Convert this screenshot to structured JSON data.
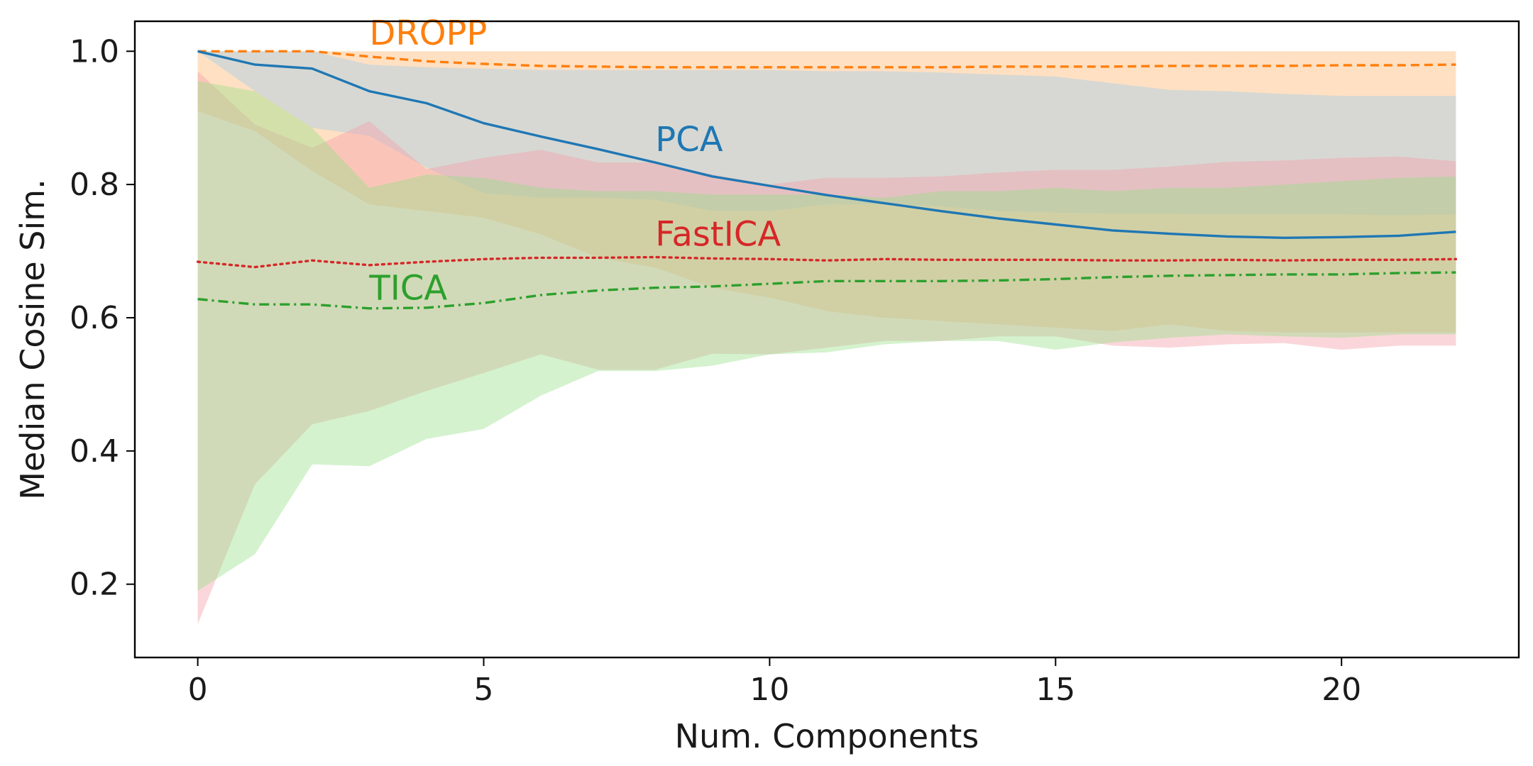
{
  "chart_data": {
    "type": "line",
    "title": "",
    "xlabel": "Num. Components",
    "ylabel": "Median Cosine Sim.",
    "xlim": [
      -1.1,
      23.1
    ],
    "ylim": [
      0.09,
      1.045
    ],
    "xticks": [
      0,
      5,
      10,
      15,
      20
    ],
    "yticks": [
      0.2,
      0.4,
      0.6,
      0.8,
      1.0
    ],
    "ytick_labels": [
      "0.2",
      "0.4",
      "0.6",
      "0.8",
      "1.0"
    ],
    "grid": false,
    "legend": "none (inline labels)",
    "x": [
      0,
      1,
      2,
      3,
      4,
      5,
      6,
      7,
      8,
      9,
      10,
      11,
      12,
      13,
      14,
      15,
      16,
      17,
      18,
      19,
      20,
      21,
      22
    ],
    "series": [
      {
        "name": "DROPP",
        "color": "#ff7f0e",
        "line_style": "dashed",
        "label_at": [
          3,
          1.01
        ],
        "values": [
          1.0,
          1.0,
          1.0,
          0.992,
          0.985,
          0.981,
          0.978,
          0.977,
          0.976,
          0.976,
          0.976,
          0.976,
          0.976,
          0.976,
          0.977,
          0.977,
          0.977,
          0.978,
          0.978,
          0.978,
          0.979,
          0.979,
          0.98
        ],
        "band_upper": [
          1.0,
          1.0,
          1.0,
          1.0,
          1.0,
          1.0,
          1.0,
          1.0,
          1.0,
          1.0,
          1.0,
          1.0,
          1.0,
          1.0,
          1.0,
          1.0,
          1.0,
          1.0,
          1.0,
          1.0,
          1.0,
          1.0,
          1.0
        ],
        "band_lower": [
          0.91,
          0.88,
          0.82,
          0.77,
          0.76,
          0.75,
          0.725,
          0.69,
          0.675,
          0.645,
          0.63,
          0.61,
          0.6,
          0.595,
          0.59,
          0.585,
          0.58,
          0.59,
          0.58,
          0.578,
          0.578,
          0.578,
          0.578
        ]
      },
      {
        "name": "PCA",
        "color": "#1f77b4",
        "line_style": "solid",
        "label_at": [
          8,
          0.85
        ],
        "values": [
          1.0,
          0.98,
          0.974,
          0.94,
          0.922,
          0.892,
          0.872,
          0.853,
          0.833,
          0.812,
          0.798,
          0.784,
          0.772,
          0.76,
          0.749,
          0.74,
          0.731,
          0.726,
          0.722,
          0.72,
          0.721,
          0.723,
          0.729
        ],
        "band_upper": [
          1.0,
          1.0,
          1.0,
          0.98,
          0.976,
          0.974,
          0.972,
          0.972,
          0.972,
          0.972,
          0.972,
          0.97,
          0.97,
          0.968,
          0.965,
          0.962,
          0.952,
          0.942,
          0.94,
          0.936,
          0.933,
          0.933,
          0.933
        ],
        "band_lower": [
          1.0,
          0.94,
          0.885,
          0.873,
          0.825,
          0.787,
          0.78,
          0.78,
          0.777,
          0.76,
          0.76,
          0.77,
          0.77,
          0.767,
          0.76,
          0.758,
          0.756,
          0.756,
          0.755,
          0.755,
          0.755,
          0.754,
          0.755
        ]
      },
      {
        "name": "FastICA",
        "color": "#d62728",
        "line_style": "dotted",
        "label_at": [
          8,
          0.708
        ],
        "values": [
          0.684,
          0.676,
          0.686,
          0.679,
          0.684,
          0.688,
          0.69,
          0.69,
          0.691,
          0.689,
          0.688,
          0.686,
          0.688,
          0.687,
          0.687,
          0.687,
          0.686,
          0.686,
          0.687,
          0.686,
          0.687,
          0.687,
          0.688
        ],
        "band_upper": [
          0.97,
          0.89,
          0.855,
          0.895,
          0.823,
          0.84,
          0.852,
          0.833,
          0.833,
          0.815,
          0.8,
          0.81,
          0.81,
          0.812,
          0.818,
          0.822,
          0.822,
          0.827,
          0.834,
          0.836,
          0.84,
          0.842,
          0.835
        ],
        "band_lower": [
          0.14,
          0.35,
          0.44,
          0.46,
          0.49,
          0.517,
          0.545,
          0.522,
          0.522,
          0.546,
          0.545,
          0.555,
          0.565,
          0.565,
          0.572,
          0.572,
          0.558,
          0.555,
          0.56,
          0.562,
          0.552,
          0.558,
          0.558
        ]
      },
      {
        "name": "TICA",
        "color": "#2ca02c",
        "line_style": "dashdot",
        "label_at": [
          3,
          0.627
        ],
        "values": [
          0.628,
          0.62,
          0.62,
          0.614,
          0.615,
          0.622,
          0.634,
          0.641,
          0.645,
          0.647,
          0.651,
          0.655,
          0.655,
          0.655,
          0.656,
          0.658,
          0.661,
          0.663,
          0.664,
          0.665,
          0.665,
          0.667,
          0.668
        ],
        "band_upper": [
          0.955,
          0.94,
          0.885,
          0.795,
          0.815,
          0.81,
          0.795,
          0.79,
          0.79,
          0.785,
          0.785,
          0.785,
          0.78,
          0.79,
          0.79,
          0.795,
          0.79,
          0.795,
          0.795,
          0.8,
          0.805,
          0.81,
          0.812
        ],
        "band_lower": [
          0.19,
          0.245,
          0.38,
          0.377,
          0.418,
          0.433,
          0.483,
          0.52,
          0.52,
          0.528,
          0.545,
          0.548,
          0.56,
          0.565,
          0.565,
          0.552,
          0.563,
          0.57,
          0.575,
          0.572,
          0.57,
          0.575,
          0.575
        ]
      }
    ]
  }
}
